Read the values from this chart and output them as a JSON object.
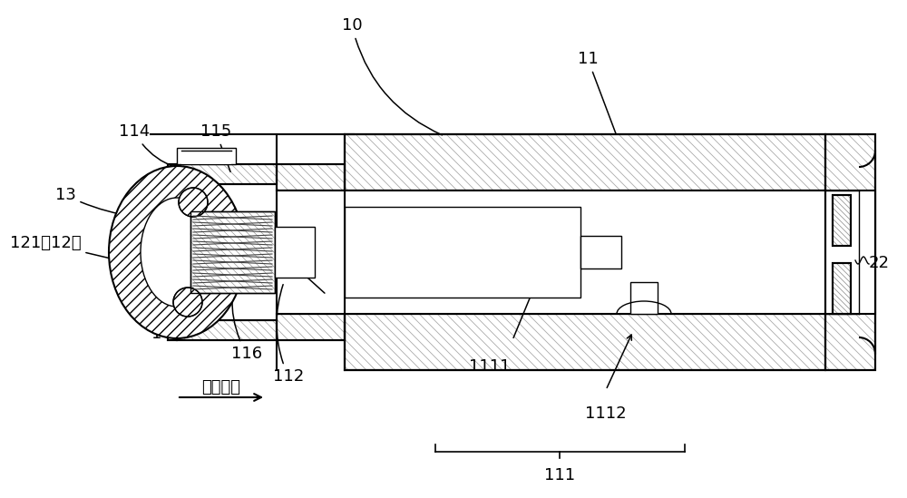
{
  "bg_color": "#ffffff",
  "line_color": "#000000",
  "labels_fs": 13,
  "direction_label": "第一方向"
}
